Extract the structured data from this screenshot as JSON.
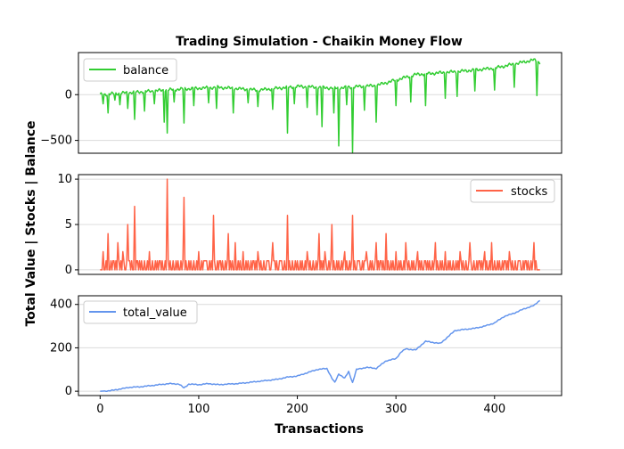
{
  "title": "Trading Simulation - Chaikin Money Flow",
  "ylabel": "Total Value | Stocks | Balance",
  "xlabel": "Transactions",
  "chart_data": [
    {
      "type": "line",
      "series": [
        {
          "name": "balance",
          "color": "#32cd32"
        }
      ],
      "x_ticks": [
        0,
        100,
        200,
        300,
        400
      ],
      "y_ticks": [
        {
          "value": -500,
          "label": "−500"
        },
        {
          "value": 0,
          "label": "0"
        }
      ],
      "ylim": [
        -640,
        460
      ],
      "xlim": [
        -22,
        468
      ],
      "grid": "y",
      "legend": "upper-left",
      "anchors": [
        [
          0,
          0
        ],
        [
          40,
          30
        ],
        [
          80,
          60
        ],
        [
          120,
          80
        ],
        [
          160,
          50
        ],
        [
          200,
          90
        ],
        [
          240,
          70
        ],
        [
          250,
          80
        ],
        [
          280,
          100
        ],
        [
          320,
          220
        ],
        [
          360,
          250
        ],
        [
          400,
          290
        ],
        [
          440,
          380
        ],
        [
          446,
          350
        ]
      ],
      "dips": [
        [
          3,
          -100
        ],
        [
          8,
          -200
        ],
        [
          15,
          -60
        ],
        [
          20,
          -110
        ],
        [
          28,
          -150
        ],
        [
          35,
          -270
        ],
        [
          45,
          -180
        ],
        [
          55,
          -100
        ],
        [
          65,
          -300
        ],
        [
          68,
          -420
        ],
        [
          75,
          -80
        ],
        [
          85,
          -310
        ],
        [
          95,
          -120
        ],
        [
          110,
          -90
        ],
        [
          118,
          -150
        ],
        [
          135,
          -200
        ],
        [
          150,
          -90
        ],
        [
          160,
          -130
        ],
        [
          175,
          -160
        ],
        [
          190,
          -420
        ],
        [
          197,
          -100
        ],
        [
          210,
          -140
        ],
        [
          220,
          -220
        ],
        [
          225,
          -350
        ],
        [
          237,
          -200
        ],
        [
          242,
          -560
        ],
        [
          250,
          -110
        ],
        [
          256,
          -630
        ],
        [
          268,
          -170
        ],
        [
          280,
          -300
        ],
        [
          300,
          -120
        ],
        [
          315,
          -80
        ],
        [
          330,
          -120
        ],
        [
          350,
          -40
        ],
        [
          362,
          -20
        ],
        [
          380,
          40
        ],
        [
          400,
          50
        ],
        [
          420,
          80
        ],
        [
          443,
          -10
        ]
      ]
    },
    {
      "type": "line",
      "series": [
        {
          "name": "stocks",
          "color": "#ff6347"
        }
      ],
      "x_ticks": [
        0,
        100,
        200,
        300,
        400
      ],
      "y_ticks": [
        {
          "value": 0,
          "label": "0"
        },
        {
          "value": 5,
          "label": "5"
        },
        {
          "value": 10,
          "label": "10"
        }
      ],
      "ylim": [
        -0.5,
        10.5
      ],
      "xlim": [
        -22,
        468
      ],
      "grid": "y",
      "legend": "upper-right",
      "spikes": [
        [
          3,
          2
        ],
        [
          8,
          4
        ],
        [
          13,
          1
        ],
        [
          18,
          3
        ],
        [
          23,
          2
        ],
        [
          28,
          5
        ],
        [
          30,
          1
        ],
        [
          35,
          7
        ],
        [
          38,
          1
        ],
        [
          50,
          2
        ],
        [
          60,
          1
        ],
        [
          68,
          10
        ],
        [
          85,
          8
        ],
        [
          90,
          1
        ],
        [
          100,
          2
        ],
        [
          107,
          1
        ],
        [
          115,
          6
        ],
        [
          122,
          1
        ],
        [
          130,
          4
        ],
        [
          137,
          3
        ],
        [
          145,
          2
        ],
        [
          150,
          1
        ],
        [
          160,
          2
        ],
        [
          170,
          1
        ],
        [
          175,
          3
        ],
        [
          183,
          1
        ],
        [
          190,
          6
        ],
        [
          200,
          1
        ],
        [
          210,
          2
        ],
        [
          216,
          1
        ],
        [
          222,
          4
        ],
        [
          228,
          2
        ],
        [
          235,
          5
        ],
        [
          240,
          1
        ],
        [
          248,
          2
        ],
        [
          256,
          6
        ],
        [
          262,
          1
        ],
        [
          270,
          2
        ],
        [
          280,
          3
        ],
        [
          285,
          1
        ],
        [
          290,
          4
        ],
        [
          300,
          2
        ],
        [
          310,
          3
        ],
        [
          322,
          2
        ],
        [
          330,
          1
        ],
        [
          340,
          3
        ],
        [
          350,
          2
        ],
        [
          358,
          1
        ],
        [
          365,
          2
        ],
        [
          375,
          3
        ],
        [
          385,
          1
        ],
        [
          390,
          2
        ],
        [
          397,
          3
        ],
        [
          405,
          1
        ],
        [
          415,
          2
        ],
        [
          425,
          1
        ],
        [
          440,
          3
        ]
      ]
    },
    {
      "type": "line",
      "series": [
        {
          "name": "total_value",
          "color": "#6495ed"
        }
      ],
      "x_ticks": [
        0,
        100,
        200,
        300,
        400
      ],
      "y_ticks": [
        {
          "value": 0,
          "label": "0"
        },
        {
          "value": 200,
          "label": "200"
        },
        {
          "value": 400,
          "label": "400"
        }
      ],
      "ylim": [
        -20,
        440
      ],
      "xlim": [
        -22,
        468
      ],
      "grid": "y",
      "legend": "upper-left",
      "points": [
        [
          0,
          0
        ],
        [
          10,
          2
        ],
        [
          20,
          10
        ],
        [
          30,
          18
        ],
        [
          40,
          20
        ],
        [
          50,
          25
        ],
        [
          60,
          30
        ],
        [
          70,
          35
        ],
        [
          80,
          33
        ],
        [
          85,
          15
        ],
        [
          90,
          33
        ],
        [
          100,
          30
        ],
        [
          110,
          35
        ],
        [
          120,
          30
        ],
        [
          130,
          33
        ],
        [
          140,
          35
        ],
        [
          150,
          40
        ],
        [
          160,
          45
        ],
        [
          170,
          50
        ],
        [
          180,
          55
        ],
        [
          190,
          65
        ],
        [
          200,
          70
        ],
        [
          210,
          85
        ],
        [
          220,
          100
        ],
        [
          230,
          105
        ],
        [
          235,
          60
        ],
        [
          238,
          40
        ],
        [
          242,
          80
        ],
        [
          248,
          60
        ],
        [
          252,
          90
        ],
        [
          256,
          40
        ],
        [
          260,
          100
        ],
        [
          270,
          110
        ],
        [
          280,
          105
        ],
        [
          290,
          140
        ],
        [
          300,
          150
        ],
        [
          305,
          180
        ],
        [
          310,
          195
        ],
        [
          320,
          190
        ],
        [
          325,
          210
        ],
        [
          330,
          230
        ],
        [
          345,
          220
        ],
        [
          350,
          240
        ],
        [
          360,
          280
        ],
        [
          370,
          285
        ],
        [
          380,
          290
        ],
        [
          390,
          300
        ],
        [
          400,
          315
        ],
        [
          410,
          345
        ],
        [
          420,
          360
        ],
        [
          430,
          380
        ],
        [
          440,
          395
        ],
        [
          446,
          420
        ]
      ]
    }
  ]
}
